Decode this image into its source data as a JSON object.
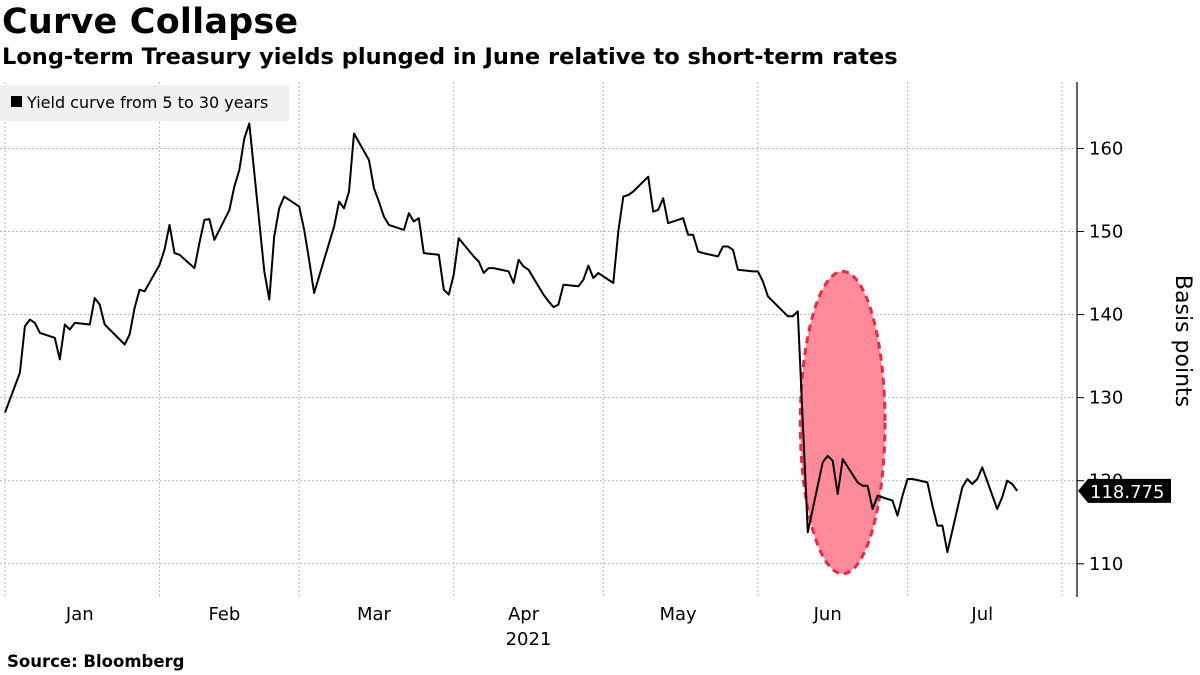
{
  "title": "Curve Collapse",
  "subtitle": "Long-term Treasury yields plunged in June relative to short-term rates",
  "source": "Source:  Bloomberg",
  "colors": {
    "line": "#000000",
    "grid": "#b8b8b8",
    "highlight_fill": "#ff8a9a",
    "highlight_stroke": "#e8294a",
    "legend_bg": "#f0f0f0"
  },
  "chart_data": {
    "type": "line",
    "title": "Curve Collapse",
    "subtitle": "Long-term Treasury yields plunged in June relative to short-term rates",
    "ylabel": "Basis points",
    "xlabel": "2021",
    "ylim": [
      106,
      168
    ],
    "yticks": [
      110,
      120,
      130,
      140,
      150,
      160
    ],
    "y_axis_side": "right",
    "grid": true,
    "legend_position": "top-left",
    "month_ticks": [
      "2021-01-01",
      "2021-02-01",
      "2021-03-01",
      "2021-04-01",
      "2021-05-01",
      "2021-06-01",
      "2021-07-01",
      "2021-08-01"
    ],
    "month_labels": [
      {
        "label": "Jan",
        "date": "2021-01-16"
      },
      {
        "label": "Feb",
        "date": "2021-02-14"
      },
      {
        "label": "Mar",
        "date": "2021-03-16"
      },
      {
        "label": "Apr",
        "date": "2021-04-15"
      },
      {
        "label": "May",
        "date": "2021-05-16"
      },
      {
        "label": "Jun",
        "date": "2021-06-15"
      },
      {
        "label": "Jul",
        "date": "2021-07-16"
      }
    ],
    "year_label": "2021",
    "x_start": "2020-12-31",
    "x_end": "2021-08-04",
    "last_value_label": "118.775",
    "highlight": {
      "description": "June plunge",
      "x_center": "2021-06-18",
      "y_center": 127,
      "x_halfwidth_days": 8.5,
      "y_halfwidth": 18.2
    },
    "series": [
      {
        "name": "Yield curve from 5 to 30 years",
        "points": [
          [
            "2021-01-01",
            128.2
          ],
          [
            "2021-01-04",
            133.0
          ],
          [
            "2021-01-05",
            138.6
          ],
          [
            "2021-01-06",
            139.4
          ],
          [
            "2021-01-07",
            139.0
          ],
          [
            "2021-01-08",
            137.8
          ],
          [
            "2021-01-11",
            137.2
          ],
          [
            "2021-01-12",
            134.6
          ],
          [
            "2021-01-13",
            138.8
          ],
          [
            "2021-01-14",
            138.2
          ],
          [
            "2021-01-15",
            139.0
          ],
          [
            "2021-01-18",
            138.8
          ],
          [
            "2021-01-19",
            142.0
          ],
          [
            "2021-01-20",
            141.2
          ],
          [
            "2021-01-21",
            138.8
          ],
          [
            "2021-01-22",
            138.2
          ],
          [
            "2021-01-25",
            136.4
          ],
          [
            "2021-01-26",
            137.6
          ],
          [
            "2021-01-27",
            140.8
          ],
          [
            "2021-01-28",
            143.0
          ],
          [
            "2021-01-29",
            142.8
          ],
          [
            "2021-02-01",
            146.0
          ],
          [
            "2021-02-02",
            147.8
          ],
          [
            "2021-02-03",
            150.8
          ],
          [
            "2021-02-04",
            147.4
          ],
          [
            "2021-02-05",
            147.2
          ],
          [
            "2021-02-08",
            145.6
          ],
          [
            "2021-02-09",
            148.6
          ],
          [
            "2021-02-10",
            151.4
          ],
          [
            "2021-02-11",
            151.5
          ],
          [
            "2021-02-12",
            149.0
          ],
          [
            "2021-02-15",
            152.6
          ],
          [
            "2021-02-16",
            155.4
          ],
          [
            "2021-02-17",
            157.4
          ],
          [
            "2021-02-18",
            161.2
          ],
          [
            "2021-02-19",
            163.0
          ],
          [
            "2021-02-22",
            145.2
          ],
          [
            "2021-02-23",
            141.8
          ],
          [
            "2021-02-24",
            149.4
          ],
          [
            "2021-02-25",
            152.8
          ],
          [
            "2021-02-26",
            154.2
          ],
          [
            "2021-03-01",
            153.0
          ],
          [
            "2021-03-02",
            150.2
          ],
          [
            "2021-03-03",
            146.6
          ],
          [
            "2021-03-04",
            142.6
          ],
          [
            "2021-03-05",
            144.6
          ],
          [
            "2021-03-08",
            150.6
          ],
          [
            "2021-03-09",
            153.6
          ],
          [
            "2021-03-10",
            152.8
          ],
          [
            "2021-03-11",
            154.8
          ],
          [
            "2021-03-12",
            161.8
          ],
          [
            "2021-03-15",
            158.6
          ],
          [
            "2021-03-16",
            155.2
          ],
          [
            "2021-03-17",
            153.6
          ],
          [
            "2021-03-18",
            151.8
          ],
          [
            "2021-03-19",
            150.8
          ],
          [
            "2021-03-22",
            150.2
          ],
          [
            "2021-03-23",
            152.2
          ],
          [
            "2021-03-24",
            151.2
          ],
          [
            "2021-03-25",
            151.6
          ],
          [
            "2021-03-26",
            147.4
          ],
          [
            "2021-03-29",
            147.2
          ],
          [
            "2021-03-30",
            143.0
          ],
          [
            "2021-03-31",
            142.4
          ],
          [
            "2021-04-01",
            144.8
          ],
          [
            "2021-04-02",
            149.2
          ],
          [
            "2021-04-05",
            147.0
          ],
          [
            "2021-04-06",
            146.4
          ],
          [
            "2021-04-07",
            145.0
          ],
          [
            "2021-04-08",
            145.6
          ],
          [
            "2021-04-09",
            145.6
          ],
          [
            "2021-04-12",
            145.2
          ],
          [
            "2021-04-13",
            143.8
          ],
          [
            "2021-04-14",
            146.6
          ],
          [
            "2021-04-15",
            145.8
          ],
          [
            "2021-04-16",
            145.4
          ],
          [
            "2021-04-19",
            142.4
          ],
          [
            "2021-04-20",
            141.6
          ],
          [
            "2021-04-21",
            140.9
          ],
          [
            "2021-04-22",
            141.2
          ],
          [
            "2021-04-23",
            143.6
          ],
          [
            "2021-04-26",
            143.4
          ],
          [
            "2021-04-27",
            144.2
          ],
          [
            "2021-04-28",
            145.9
          ],
          [
            "2021-04-29",
            144.4
          ],
          [
            "2021-04-30",
            145.0
          ],
          [
            "2021-05-03",
            143.8
          ],
          [
            "2021-05-04",
            150.0
          ],
          [
            "2021-05-05",
            154.2
          ],
          [
            "2021-05-06",
            154.4
          ],
          [
            "2021-05-07",
            154.8
          ],
          [
            "2021-05-10",
            156.6
          ],
          [
            "2021-05-11",
            152.4
          ],
          [
            "2021-05-12",
            152.6
          ],
          [
            "2021-05-13",
            154.0
          ],
          [
            "2021-05-14",
            151.0
          ],
          [
            "2021-05-17",
            151.6
          ],
          [
            "2021-05-18",
            149.6
          ],
          [
            "2021-05-19",
            149.6
          ],
          [
            "2021-05-20",
            147.6
          ],
          [
            "2021-05-21",
            147.4
          ],
          [
            "2021-05-24",
            147.0
          ],
          [
            "2021-05-25",
            148.2
          ],
          [
            "2021-05-26",
            148.2
          ],
          [
            "2021-05-27",
            147.8
          ],
          [
            "2021-05-28",
            145.4
          ],
          [
            "2021-05-31",
            145.2
          ],
          [
            "2021-06-01",
            145.2
          ],
          [
            "2021-06-02",
            144.0
          ],
          [
            "2021-06-03",
            142.2
          ],
          [
            "2021-06-04",
            141.6
          ],
          [
            "2021-06-07",
            139.8
          ],
          [
            "2021-06-08",
            139.8
          ],
          [
            "2021-06-09",
            140.4
          ],
          [
            "2021-06-10",
            127.0
          ],
          [
            "2021-06-11",
            113.8
          ],
          [
            "2021-06-14",
            122.2
          ],
          [
            "2021-06-15",
            123.0
          ],
          [
            "2021-06-16",
            122.4
          ],
          [
            "2021-06-17",
            118.4
          ],
          [
            "2021-06-18",
            122.6
          ],
          [
            "2021-06-21",
            119.8
          ],
          [
            "2021-06-22",
            119.4
          ],
          [
            "2021-06-23",
            119.4
          ],
          [
            "2021-06-24",
            116.6
          ],
          [
            "2021-06-25",
            118.2
          ],
          [
            "2021-06-28",
            117.6
          ],
          [
            "2021-06-29",
            115.8
          ],
          [
            "2021-06-30",
            118.2
          ],
          [
            "2021-07-01",
            120.2
          ],
          [
            "2021-07-02",
            120.2
          ],
          [
            "2021-07-05",
            119.8
          ],
          [
            "2021-07-06",
            117.0
          ],
          [
            "2021-07-07",
            114.6
          ],
          [
            "2021-07-08",
            114.6
          ],
          [
            "2021-07-09",
            111.4
          ],
          [
            "2021-07-12",
            119.2
          ],
          [
            "2021-07-13",
            120.2
          ],
          [
            "2021-07-14",
            119.6
          ],
          [
            "2021-07-15",
            120.2
          ],
          [
            "2021-07-16",
            121.6
          ],
          [
            "2021-07-19",
            116.6
          ],
          [
            "2021-07-20",
            118.0
          ],
          [
            "2021-07-21",
            120.0
          ],
          [
            "2021-07-22",
            119.6
          ],
          [
            "2021-07-23",
            118.775
          ]
        ]
      }
    ]
  }
}
